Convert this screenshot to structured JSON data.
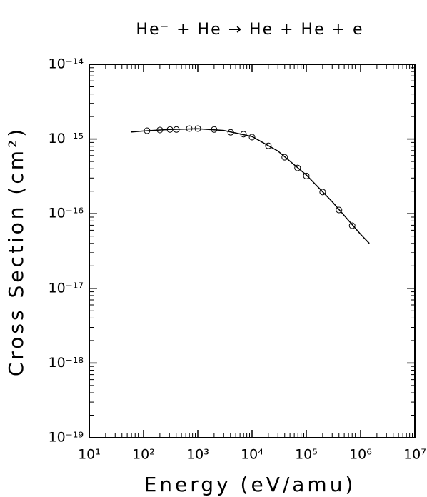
{
  "chart_data": {
    "type": "scatter-line",
    "title": "He⁻ + He → He + He + e",
    "x_label": "Energy (eV/amu)",
    "y_label": "Cross Section (cm²)",
    "x_log": true,
    "y_log": true,
    "minor_ticks": true,
    "xlim": [
      10,
      10000000
    ],
    "ylim": [
      1e-19,
      1e-14
    ],
    "xticks": [
      {
        "value": 10,
        "label": "10¹"
      },
      {
        "value": 100,
        "label": "10²"
      },
      {
        "value": 1000,
        "label": "10³"
      },
      {
        "value": 10000,
        "label": "10⁴"
      },
      {
        "value": 100000,
        "label": "10⁵"
      },
      {
        "value": 1000000,
        "label": "10⁶"
      },
      {
        "value": 10000000,
        "label": "10⁷"
      }
    ],
    "yticks": [
      {
        "value": 1e-19,
        "label": "10⁻¹⁹"
      },
      {
        "value": 1e-18,
        "label": "10⁻¹⁸"
      },
      {
        "value": 1e-17,
        "label": "10⁻¹⁷"
      },
      {
        "value": 1e-16,
        "label": "10⁻¹⁶"
      },
      {
        "value": 1e-15,
        "label": "10⁻¹⁵"
      },
      {
        "value": 1e-14,
        "label": "10⁻¹⁴"
      }
    ],
    "series": [
      {
        "kind": "line",
        "color": "#000000",
        "x": [
          58,
          100,
          300,
          1000,
          3000,
          10000,
          30000,
          100000,
          300000,
          1000000,
          1450000
        ],
        "values": [
          1.24e-15,
          1.28e-15,
          1.34e-15,
          1.37e-15,
          1.3e-15,
          1.08e-15,
          6.9e-16,
          3.3e-16,
          1.45e-16,
          5.3e-17,
          4e-17
        ]
      },
      {
        "kind": "markers",
        "color": "#000000",
        "x": [
          116,
          200,
          307,
          403,
          695,
          1000,
          2000,
          4050,
          6960,
          10000,
          20000,
          40000,
          69000,
          100000,
          200000,
          400000,
          700000
        ],
        "values": [
          1.29e-15,
          1.32e-15,
          1.34e-15,
          1.34e-15,
          1.38e-15,
          1.38e-15,
          1.34e-15,
          1.23e-15,
          1.16e-15,
          1.06e-15,
          8.1e-16,
          5.7e-16,
          4.1e-16,
          3.2e-16,
          1.95e-16,
          1.12e-16,
          6.9e-17
        ]
      }
    ]
  }
}
